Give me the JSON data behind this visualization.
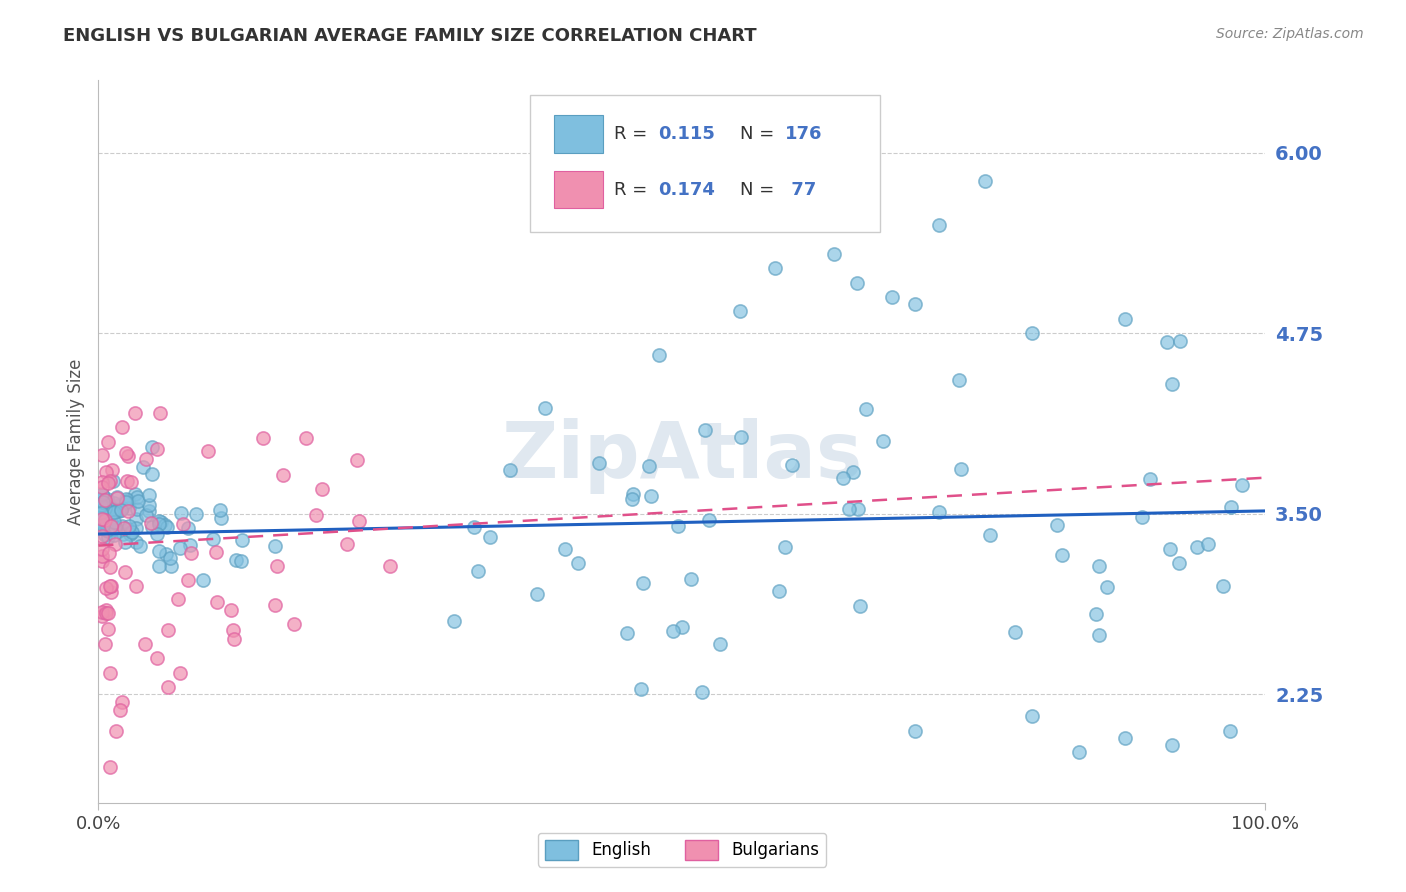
{
  "title": "ENGLISH VS BULGARIAN AVERAGE FAMILY SIZE CORRELATION CHART",
  "source": "Source: ZipAtlas.com",
  "ylabel": "Average Family Size",
  "xlim": [
    0,
    1
  ],
  "ylim": [
    1.5,
    6.5
  ],
  "yticks": [
    2.25,
    3.5,
    4.75,
    6.0
  ],
  "ytick_labels": [
    "2.25",
    "3.50",
    "4.75",
    "6.00"
  ],
  "xtick_labels": [
    "0.0%",
    "100.0%"
  ],
  "english_color": "#7fbfdf",
  "bulgarian_color": "#f090b0",
  "english_edge_color": "#5a9ec0",
  "bulgarian_edge_color": "#e060a0",
  "english_line_color": "#2060c0",
  "bulgarian_line_color": "#e0508a",
  "title_color": "#333333",
  "axis_label_color": "#555555",
  "tick_label_color": "#4472c4",
  "watermark_color": "#e0e8f0",
  "background_color": "#ffffff",
  "grid_color": "#cccccc",
  "legend_r1": "R = 0.115",
  "legend_n1": "N = 176",
  "legend_r2": "R = 0.174",
  "legend_n2": "N =  77"
}
